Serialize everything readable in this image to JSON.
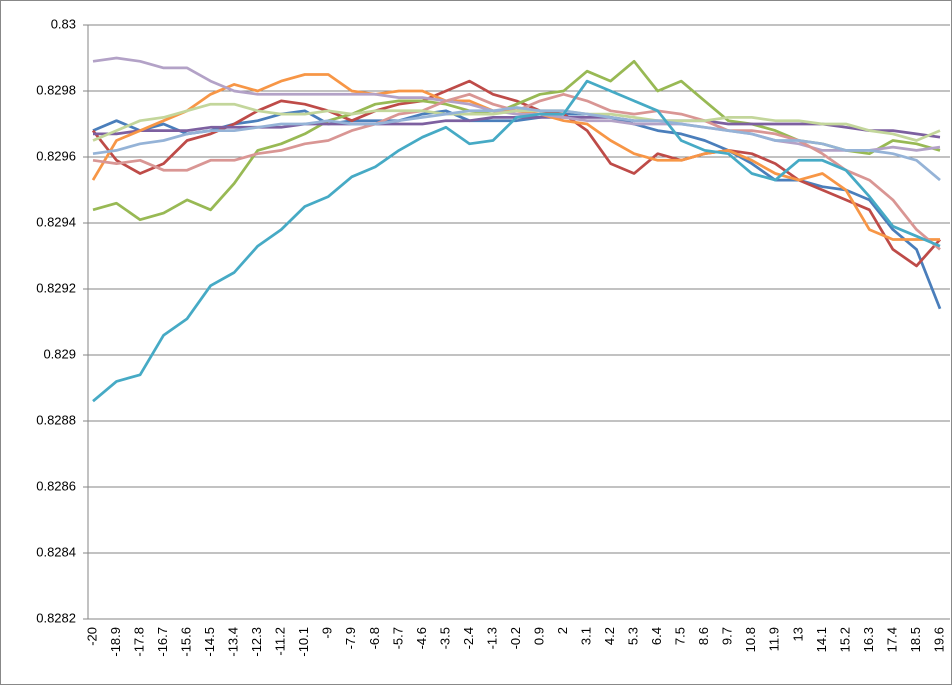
{
  "chart_data": {
    "type": "line",
    "categories": [
      -20,
      -18.9,
      -17.8,
      -16.7,
      -15.6,
      -14.5,
      -13.4,
      -12.3,
      -11.2,
      -10.1,
      -9,
      -7.9,
      -6.8,
      -5.7,
      -4.6,
      -3.5,
      -2.4,
      -1.3,
      -0.2,
      0.9,
      2,
      3.1,
      4.2,
      5.3,
      6.4,
      7.5,
      8.6,
      9.7,
      10.8,
      11.9,
      13,
      14.1,
      15.2,
      16.3,
      17.4,
      18.5,
      19.6
    ],
    "ylim": [
      0.8282,
      0.83
    ],
    "yticks": [
      0.8282,
      0.8284,
      0.8286,
      0.8288,
      0.829,
      0.8292,
      0.8294,
      0.8296,
      0.8298,
      0.83
    ],
    "grid": true,
    "series": [
      {
        "color": "#4a7ebb",
        "values": [
          0.82968,
          0.82971,
          0.82968,
          0.8297,
          0.82967,
          0.82968,
          0.8297,
          0.82971,
          0.82973,
          0.82974,
          0.8297,
          0.82971,
          0.82971,
          0.82971,
          0.82973,
          0.82974,
          0.82971,
          0.82971,
          0.82971,
          0.82972,
          0.82973,
          0.82973,
          0.82972,
          0.8297,
          0.82968,
          0.82967,
          0.82965,
          0.82962,
          0.82958,
          0.82953,
          0.82953,
          0.82951,
          0.8295,
          0.82947,
          0.82938,
          0.82932,
          0.82914
        ]
      },
      {
        "color": "#be4b48",
        "values": [
          0.82968,
          0.82959,
          0.82955,
          0.82958,
          0.82965,
          0.82967,
          0.8297,
          0.82974,
          0.82977,
          0.82976,
          0.82974,
          0.82971,
          0.82974,
          0.82976,
          0.82977,
          0.8298,
          0.82983,
          0.82979,
          0.82977,
          0.82974,
          0.82973,
          0.82968,
          0.82958,
          0.82955,
          0.82961,
          0.82959,
          0.82961,
          0.82962,
          0.82961,
          0.82958,
          0.82953,
          0.8295,
          0.82947,
          0.82944,
          0.82932,
          0.82927,
          0.82935
        ]
      },
      {
        "color": "#98b954",
        "values": [
          0.82944,
          0.82946,
          0.82941,
          0.82943,
          0.82947,
          0.82944,
          0.82952,
          0.82962,
          0.82964,
          0.82967,
          0.82971,
          0.82973,
          0.82976,
          0.82977,
          0.82977,
          0.82976,
          0.82974,
          0.82973,
          0.82976,
          0.82979,
          0.8298,
          0.82986,
          0.82983,
          0.82989,
          0.8298,
          0.82983,
          0.82977,
          0.82971,
          0.8297,
          0.82968,
          0.82965,
          0.82964,
          0.82962,
          0.82961,
          0.82965,
          0.82964,
          0.82962
        ]
      },
      {
        "color": "#7d60a0",
        "values": [
          0.82967,
          0.82967,
          0.82968,
          0.82968,
          0.82968,
          0.82969,
          0.82969,
          0.82969,
          0.82969,
          0.8297,
          0.8297,
          0.8297,
          0.8297,
          0.8297,
          0.8297,
          0.82971,
          0.82971,
          0.82972,
          0.82972,
          0.82972,
          0.82972,
          0.82972,
          0.82972,
          0.82971,
          0.82971,
          0.82971,
          0.82971,
          0.8297,
          0.8297,
          0.8297,
          0.8297,
          0.8297,
          0.82969,
          0.82968,
          0.82968,
          0.82967,
          0.82966
        ]
      },
      {
        "color": "#f79646",
        "values": [
          0.82953,
          0.82965,
          0.82968,
          0.82971,
          0.82974,
          0.82979,
          0.82982,
          0.8298,
          0.82983,
          0.82985,
          0.82985,
          0.8298,
          0.82979,
          0.8298,
          0.8298,
          0.82977,
          0.82977,
          0.82974,
          0.82974,
          0.82973,
          0.82971,
          0.8297,
          0.82965,
          0.82961,
          0.82959,
          0.82959,
          0.82961,
          0.82962,
          0.82959,
          0.82955,
          0.82953,
          0.82955,
          0.8295,
          0.82938,
          0.82935,
          0.82935,
          0.82935
        ]
      },
      {
        "color": "#b3a2c7",
        "values": [
          0.82989,
          0.8299,
          0.82989,
          0.82987,
          0.82987,
          0.82983,
          0.8298,
          0.82979,
          0.82979,
          0.82979,
          0.82979,
          0.82979,
          0.82979,
          0.82978,
          0.82978,
          0.82977,
          0.82976,
          0.82974,
          0.82973,
          0.82973,
          0.82972,
          0.82971,
          0.82971,
          0.8297,
          0.8297,
          0.8297,
          0.82969,
          0.82968,
          0.82967,
          0.82965,
          0.82964,
          0.82962,
          0.82962,
          0.82962,
          0.82963,
          0.82962,
          0.82963
        ]
      },
      {
        "color": "#d99694",
        "values": [
          0.82959,
          0.82958,
          0.82959,
          0.82956,
          0.82956,
          0.82959,
          0.82959,
          0.82961,
          0.82962,
          0.82964,
          0.82965,
          0.82968,
          0.8297,
          0.82973,
          0.82974,
          0.82977,
          0.82979,
          0.82976,
          0.82974,
          0.82977,
          0.82979,
          0.82977,
          0.82974,
          0.82973,
          0.82974,
          0.82973,
          0.82971,
          0.82968,
          0.82968,
          0.82967,
          0.82965,
          0.82961,
          0.82956,
          0.82953,
          0.82947,
          0.82938,
          0.82932
        ]
      },
      {
        "color": "#c3d69b",
        "values": [
          0.82965,
          0.82968,
          0.82971,
          0.82972,
          0.82974,
          0.82976,
          0.82976,
          0.82974,
          0.82973,
          0.82973,
          0.82974,
          0.82973,
          0.82974,
          0.82974,
          0.82974,
          0.82973,
          0.82973,
          0.82973,
          0.82974,
          0.82974,
          0.82974,
          0.82973,
          0.82973,
          0.82972,
          0.82971,
          0.82971,
          0.82971,
          0.82972,
          0.82972,
          0.82971,
          0.82971,
          0.8297,
          0.8297,
          0.82968,
          0.82967,
          0.82965,
          0.82968
        ]
      },
      {
        "color": "#95b3d7",
        "values": [
          0.82961,
          0.82962,
          0.82964,
          0.82965,
          0.82967,
          0.82968,
          0.82968,
          0.82969,
          0.8297,
          0.8297,
          0.82971,
          0.8297,
          0.8297,
          0.82971,
          0.82972,
          0.82973,
          0.82974,
          0.82974,
          0.82975,
          0.82974,
          0.82974,
          0.82973,
          0.82972,
          0.82971,
          0.82971,
          0.8297,
          0.82969,
          0.82968,
          0.82967,
          0.82965,
          0.82965,
          0.82964,
          0.82962,
          0.82962,
          0.82961,
          0.82959,
          0.82953
        ]
      },
      {
        "color": "#46aac5",
        "values": [
          0.82886,
          0.82892,
          0.82894,
          0.82906,
          0.82911,
          0.82921,
          0.82925,
          0.82933,
          0.82938,
          0.82945,
          0.82948,
          0.82954,
          0.82957,
          0.82962,
          0.82966,
          0.82969,
          0.82964,
          0.82965,
          0.82972,
          0.82973,
          0.82973,
          0.82983,
          0.8298,
          0.82977,
          0.82974,
          0.82965,
          0.82962,
          0.82961,
          0.82955,
          0.82953,
          0.82959,
          0.82959,
          0.82956,
          0.82948,
          0.82939,
          0.82936,
          0.82933
        ]
      }
    ]
  }
}
